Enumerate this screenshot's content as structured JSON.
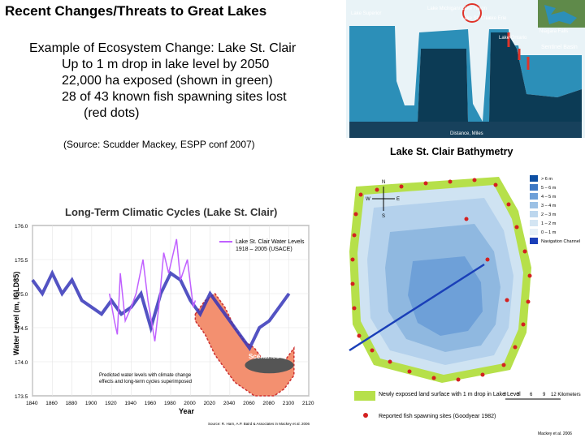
{
  "slide": {
    "title": "Recent Changes/Threats to Great Lakes",
    "bullets": [
      "Example of Ecosystem Change: Lake St. Clair",
      "Up to 1 m drop in lake level by 2050",
      "22,000 ha exposed (shown in green)",
      "28 of 43 known fish spawning sites lost",
      "(red dots)"
    ],
    "source": "(Source: Scudder Mackey, ESPP conf 2007)"
  },
  "profile": {
    "labels": [
      "Lake Superior",
      "Lake Michigan/ Lake Huron",
      "Lake St. Clair",
      "Lake Erie",
      "Niagara Falls",
      "Lake Ontario",
      "Sentinel Basin",
      "Distance, Miles"
    ],
    "colors": {
      "sky": "#e9f3f7",
      "water": "#2c8fb8",
      "bottom": "#0c3b55",
      "highlight": "#e0342a"
    }
  },
  "bathymetry": {
    "title": "Lake St. Clair Bathymetry",
    "legend": [
      {
        "label": "> 6 m",
        "color": "#0d4fa3"
      },
      {
        "label": "5 – 6 m",
        "color": "#3d78c4"
      },
      {
        "label": "4 – 5 m",
        "color": "#6ea0d8"
      },
      {
        "label": "3 – 4 m",
        "color": "#9cc1e5"
      },
      {
        "label": "2 – 3 m",
        "color": "#bdd7ee"
      },
      {
        "label": "1 – 2 m",
        "color": "#d3e5f3"
      },
      {
        "label": "0 – 1 m",
        "color": "#e6f0f8"
      },
      {
        "label": "Navigation Channel",
        "color": "#1a3fb8"
      }
    ],
    "compass": [
      "N",
      "E",
      "S",
      "W"
    ],
    "key_exposed": "Newly exposed land surface with 1 m drop in Lake Level",
    "key_spawning": "Reported fish spawning sites (Goodyear 1982)",
    "scale": [
      "0",
      "3",
      "6",
      "9",
      "12 Kilometers"
    ],
    "credit": "Mackey et al. 2006",
    "colors": {
      "exposed": "#b6e04a",
      "dots": "#d42020"
    }
  },
  "climate": {
    "title": "Long-Term Climatic Cycles (Lake St. Clair)",
    "legend_line1": "Lake St. Clair Water Levels",
    "legend_line2": "1918 – 2005 (USACE)",
    "scenario_label": "Scenarios",
    "note_line1": "Predicted water levels with climate change",
    "note_line2": "effects and long-term cycles superimposed",
    "credit": "Source: R. Harn, A.P. Baird & Associates in Mackey et al. 2006",
    "colors": {
      "historic": "#3535b8",
      "gauge": "#c060ff",
      "scenario": "#cc3030",
      "scenario_fill": "#f39070"
    }
  },
  "chart_data": {
    "type": "line",
    "title": "Long-Term Climatic Cycles (Lake St. Clair)",
    "xlabel": "Year",
    "ylabel": "Water Level (m, IGLD85)",
    "xlim": [
      1840,
      2120
    ],
    "ylim": [
      173.5,
      176.0
    ],
    "x_ticks": [
      1840,
      1860,
      1880,
      1900,
      1920,
      1940,
      1960,
      1980,
      2000,
      2020,
      2040,
      2060,
      2080,
      2100,
      2120
    ],
    "y_ticks": [
      "176.0",
      "175.5",
      "175.0",
      "174.5",
      "174.0",
      "173.5"
    ],
    "series": [
      {
        "name": "Lake St. Clair Water Levels 1918 – 2005 (USACE)",
        "x": [
          1918,
          1923,
          1926,
          1929,
          1934,
          1940,
          1945,
          1952,
          1957,
          1964,
          1968,
          1973,
          1978,
          1986,
          1990,
          1997,
          2003,
          2005
        ],
        "y": [
          175.0,
          174.6,
          174.4,
          175.3,
          174.6,
          174.8,
          175.0,
          175.5,
          174.9,
          174.3,
          174.8,
          175.6,
          175.3,
          175.8,
          175.2,
          175.5,
          174.8,
          174.9
        ]
      },
      {
        "x": [
          1840,
          1850,
          1860,
          1870,
          1880,
          1890,
          1900,
          1910,
          1920,
          1930,
          1940,
          1950,
          1960,
          1970,
          1980,
          1990,
          2000,
          2010,
          2020,
          2030,
          2040,
          2050,
          2060,
          2070,
          2080,
          2090,
          2100
        ],
        "y": [
          175.2,
          175.0,
          175.3,
          175.0,
          175.2,
          174.9,
          174.8,
          174.7,
          174.9,
          174.7,
          174.8,
          175.0,
          174.5,
          175.0,
          175.3,
          175.2,
          174.9,
          174.7,
          175.0,
          174.8,
          174.6,
          174.4,
          174.2,
          174.5,
          174.6,
          174.8,
          175.0
        ]
      },
      {
        "name": "Scenarios",
        "x": [
          2005,
          2015,
          2025,
          2035,
          2045,
          2055,
          2065,
          2075,
          2085,
          2095,
          2105
        ],
        "y_upper": [
          174.7,
          174.9,
          175.0,
          174.8,
          174.5,
          174.3,
          174.2,
          174.0,
          173.9,
          174.0,
          174.2
        ],
        "y_lower": [
          174.6,
          174.4,
          174.1,
          173.9,
          173.7,
          173.6,
          173.5,
          173.5,
          173.5,
          173.6,
          173.8
        ]
      }
    ],
    "annotations": [
      "Scenarios",
      "Predicted water levels with climate change effects and long-term cycles superimposed"
    ]
  }
}
